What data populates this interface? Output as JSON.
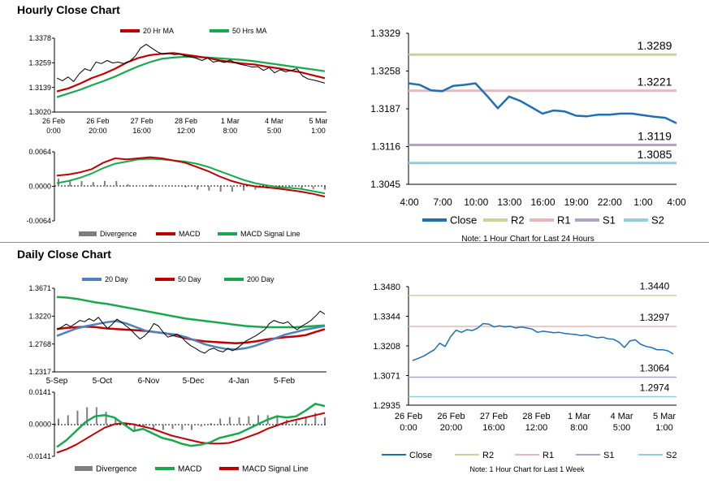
{
  "hourly_section": {
    "title": "Hourly Close Chart"
  },
  "daily_section": {
    "title": "Daily Close Chart"
  },
  "colors": {
    "ma20": "#c00000",
    "ma50": "#1aa84f",
    "price": "#000000",
    "macd": "#c00000",
    "signal": "#1aa84f",
    "divergence": "#7f7f7f",
    "close_blue": "#1f6fb5",
    "r2": "#c3d69b",
    "r1": "#e6b9b8",
    "s1": "#b3a2c7",
    "s2": "#93cddd",
    "sma20_daily": "#4f81bd"
  },
  "chart_data": [
    {
      "id": "hourly_price",
      "type": "line",
      "legend": [
        "20 Hr MA",
        "50 Hrs MA"
      ],
      "y_ticks": [
        "1.3378",
        "1.3259",
        "1.3139",
        "1.3020"
      ],
      "ylim": [
        1.302,
        1.3378
      ],
      "x_ticks": [
        [
          "26 Feb",
          "0:00"
        ],
        [
          "26 Feb",
          "20:00"
        ],
        [
          "27 Feb",
          "16:00"
        ],
        [
          "28 Feb",
          "12:00"
        ],
        [
          "1 Mar",
          "8:00"
        ],
        [
          "4 Mar",
          "5:00"
        ],
        [
          "5 Mar",
          "1:00"
        ]
      ],
      "series": [
        {
          "name": "Close",
          "values": [
            1.3185,
            1.3172,
            1.319,
            1.3168,
            1.3205,
            1.323,
            1.322,
            1.3262,
            1.3255,
            1.327,
            1.3258,
            1.3262,
            1.3255,
            1.3265,
            1.329,
            1.333,
            1.3348,
            1.333,
            1.3312,
            1.33,
            1.3305,
            1.3298,
            1.33,
            1.3292,
            1.3288,
            1.328,
            1.327,
            1.3282,
            1.3262,
            1.3268,
            1.326,
            1.3272,
            1.3258,
            1.325,
            1.3245,
            1.3238,
            1.324,
            1.3222,
            1.3235,
            1.321,
            1.3225,
            1.3215,
            1.3222,
            1.323,
            1.3195,
            1.318,
            1.3175,
            1.3168,
            1.316
          ]
        },
        {
          "name": "20 Hr MA",
          "values": [
            1.312,
            1.3135,
            1.3158,
            1.3185,
            1.3205,
            1.323,
            1.326,
            1.3282,
            1.3296,
            1.3302,
            1.3306,
            1.3298,
            1.329,
            1.3282,
            1.327,
            1.3262,
            1.3255,
            1.325,
            1.324,
            1.3232,
            1.3222,
            1.3212,
            1.3198,
            1.3184
          ]
        },
        {
          "name": "50 Hrs MA",
          "values": [
            1.3092,
            1.311,
            1.3128,
            1.315,
            1.317,
            1.3192,
            1.3218,
            1.3242,
            1.3262,
            1.3278,
            1.3284,
            1.3288,
            1.3286,
            1.3284,
            1.328,
            1.3276,
            1.3272,
            1.3266,
            1.3258,
            1.325,
            1.3242,
            1.3234,
            1.3226,
            1.3218
          ]
        }
      ]
    },
    {
      "id": "hourly_macd",
      "type": "line",
      "legend": [
        "Divergence",
        "MACD",
        "MACD Signal Line"
      ],
      "y_ticks": [
        "0.0064",
        "0.0000",
        "-0.0064"
      ],
      "ylim": [
        -0.0064,
        0.0064
      ],
      "series": [
        {
          "name": "MACD",
          "values": [
            0.002,
            0.0022,
            0.0026,
            0.0032,
            0.0044,
            0.0052,
            0.005,
            0.0052,
            0.0054,
            0.0052,
            0.0048,
            0.0044,
            0.0036,
            0.0028,
            0.0018,
            0.001,
            0.0004,
            0.0,
            -0.0002,
            -0.0004,
            -0.0007,
            -0.001,
            -0.0014,
            -0.0019
          ]
        },
        {
          "name": "MACD Signal Line",
          "values": [
            0.0006,
            0.001,
            0.0016,
            0.0024,
            0.0034,
            0.0042,
            0.0046,
            0.005,
            0.0051,
            0.005,
            0.0048,
            0.0046,
            0.0042,
            0.0036,
            0.0028,
            0.002,
            0.0012,
            0.0006,
            0.0002,
            -0.0001,
            -0.0003,
            -0.0005,
            -0.0009,
            -0.0013
          ]
        },
        {
          "name": "Divergence",
          "values": [
            0.0014,
            0.0012,
            0.001,
            0.0008,
            0.001,
            0.001,
            0.0004,
            0.0002,
            0.0003,
            0.0002,
            0.0,
            -0.0002,
            -0.0006,
            -0.0008,
            -0.001,
            -0.001,
            -0.0008,
            -0.0006,
            -0.0004,
            -0.0003,
            -0.0004,
            -0.0005,
            -0.0005,
            -0.0006
          ]
        }
      ]
    },
    {
      "id": "hourly_levels",
      "type": "line",
      "y_ticks": [
        "1.3329",
        "1.3258",
        "1.3187",
        "1.3116",
        "1.3045"
      ],
      "ylim": [
        1.3045,
        1.3329
      ],
      "x_ticks": [
        "4:00",
        "7:00",
        "10:00",
        "13:00",
        "16:00",
        "19:00",
        "22:00",
        "1:00",
        "4:00"
      ],
      "levels": [
        {
          "name": "R2",
          "value": 1.3289,
          "label": "1.3289"
        },
        {
          "name": "R1",
          "value": 1.3221,
          "label": "1.3221"
        },
        {
          "name": "S1",
          "value": 1.3119,
          "label": "1.3119"
        },
        {
          "name": "S2",
          "value": 1.3085,
          "label": "1.3085"
        }
      ],
      "series": [
        {
          "name": "Close",
          "values": [
            1.3235,
            1.3232,
            1.3222,
            1.322,
            1.323,
            1.3232,
            1.3235,
            1.3212,
            1.3188,
            1.321,
            1.3202,
            1.319,
            1.3178,
            1.3184,
            1.3182,
            1.3174,
            1.3173,
            1.3176,
            1.3176,
            1.3178,
            1.3178,
            1.3175,
            1.3172,
            1.317,
            1.316
          ]
        }
      ],
      "legend": [
        "Close",
        "R2",
        "R1",
        "S1",
        "S2"
      ],
      "note": "Note: 1 Hour Chart for Last 24 Hours"
    },
    {
      "id": "daily_price",
      "type": "line",
      "legend": [
        "20 Day",
        "50 Day",
        "200 Day"
      ],
      "y_ticks": [
        "1.3671",
        "1.3220",
        "1.2768",
        "1.2317"
      ],
      "ylim": [
        1.2317,
        1.3671
      ],
      "x_ticks": [
        "5-Sep",
        "5-Oct",
        "6-Nov",
        "5-Dec",
        "4-Jan",
        "5-Feb"
      ],
      "series": [
        {
          "name": "Close",
          "values": [
            1.3,
            1.304,
            1.309,
            1.305,
            1.31,
            1.315,
            1.313,
            1.318,
            1.314,
            1.32,
            1.31,
            1.302,
            1.309,
            1.317,
            1.312,
            1.306,
            1.3,
            1.292,
            1.285,
            1.29,
            1.298,
            1.31,
            1.306,
            1.296,
            1.288,
            1.29,
            1.293,
            1.288,
            1.28,
            1.274,
            1.27,
            1.265,
            1.262,
            1.268,
            1.27,
            1.266,
            1.264,
            1.27,
            1.266,
            1.27,
            1.276,
            1.282,
            1.286,
            1.29,
            1.295,
            1.3,
            1.31,
            1.315,
            1.312,
            1.31,
            1.313,
            1.305,
            1.3,
            1.306,
            1.31,
            1.315,
            1.322,
            1.33,
            1.325
          ]
        },
        {
          "name": "20 Day",
          "values": [
            1.29,
            1.296,
            1.302,
            1.306,
            1.309,
            1.312,
            1.314,
            1.31,
            1.304,
            1.298,
            1.296,
            1.294,
            1.292,
            1.288,
            1.282,
            1.276,
            1.272,
            1.269,
            1.268,
            1.27,
            1.274,
            1.28,
            1.286,
            1.292,
            1.296,
            1.3,
            1.303,
            1.306
          ]
        },
        {
          "name": "50 Day",
          "values": [
            1.301,
            1.303,
            1.304,
            1.305,
            1.304,
            1.302,
            1.301,
            1.3,
            1.299,
            1.298,
            1.296,
            1.294,
            1.29,
            1.286,
            1.283,
            1.281,
            1.28,
            1.279,
            1.278,
            1.279,
            1.281,
            1.284,
            1.286,
            1.288,
            1.289,
            1.291,
            1.296,
            1.301
          ]
        },
        {
          "name": "200 Day",
          "values": [
            1.353,
            1.352,
            1.35,
            1.347,
            1.344,
            1.342,
            1.339,
            1.336,
            1.333,
            1.33,
            1.327,
            1.324,
            1.321,
            1.318,
            1.316,
            1.314,
            1.312,
            1.31,
            1.308,
            1.306,
            1.305,
            1.304,
            1.304,
            1.304,
            1.304,
            1.305,
            1.306,
            1.307
          ]
        }
      ]
    },
    {
      "id": "daily_macd",
      "type": "line",
      "legend": [
        "Divergence",
        "MACD",
        "MACD Signal Line"
      ],
      "y_ticks": [
        "0.0141",
        "0.0000",
        "-0.0141"
      ],
      "ylim": [
        -0.0141,
        0.0141
      ],
      "series": [
        {
          "name": "MACD",
          "values": [
            -0.01,
            -0.007,
            -0.003,
            0.001,
            0.0035,
            0.004,
            0.003,
            0.0,
            -0.003,
            -0.002,
            -0.004,
            -0.006,
            -0.007,
            -0.0085,
            -0.0095,
            -0.009,
            -0.008,
            -0.006,
            -0.005,
            -0.004,
            -0.002,
            0.0,
            0.002,
            0.0035,
            0.003,
            0.0035,
            0.006,
            0.009,
            0.008
          ]
        },
        {
          "name": "MACD Signal Line",
          "values": [
            -0.0125,
            -0.011,
            -0.009,
            -0.0065,
            -0.004,
            -0.0015,
            0.0,
            0.0005,
            0.0,
            -0.001,
            -0.002,
            -0.0035,
            -0.005,
            -0.006,
            -0.007,
            -0.008,
            -0.0085,
            -0.0085,
            -0.0082,
            -0.007,
            -0.0055,
            -0.004,
            -0.002,
            -0.0005,
            0.001,
            0.002,
            0.003,
            0.004,
            0.005
          ]
        },
        {
          "name": "Divergence",
          "values": [
            0.0025,
            0.004,
            0.006,
            0.0075,
            0.0075,
            0.0055,
            0.003,
            -0.0005,
            -0.003,
            -0.001,
            -0.002,
            -0.0025,
            -0.002,
            -0.0025,
            -0.0025,
            -0.001,
            0.0005,
            0.0025,
            0.0032,
            0.003,
            0.0035,
            0.004,
            0.004,
            0.004,
            0.002,
            0.0015,
            0.003,
            0.005,
            0.003
          ]
        }
      ]
    },
    {
      "id": "daily_levels",
      "type": "line",
      "y_ticks": [
        "1.3480",
        "1.3344",
        "1.3208",
        "1.3071",
        "1.2935"
      ],
      "ylim": [
        1.2935,
        1.348
      ],
      "x_ticks": [
        [
          "26 Feb",
          "0:00"
        ],
        [
          "26 Feb",
          "20:00"
        ],
        [
          "27 Feb",
          "16:00"
        ],
        [
          "28 Feb",
          "12:00"
        ],
        [
          "1 Mar",
          "8:00"
        ],
        [
          "4 Mar",
          "5:00"
        ],
        [
          "5 Mar",
          "1:00"
        ]
      ],
      "levels": [
        {
          "name": "R2",
          "value": 1.344,
          "label": "1.3440"
        },
        {
          "name": "R1",
          "value": 1.3297,
          "label": "1.3297"
        },
        {
          "name": "S1",
          "value": 1.3064,
          "label": "1.3064"
        },
        {
          "name": "S2",
          "value": 1.2974,
          "label": "1.2974"
        }
      ],
      "series": [
        {
          "name": "Close",
          "values": [
            1.314,
            1.315,
            1.316,
            1.3175,
            1.319,
            1.322,
            1.3205,
            1.325,
            1.328,
            1.327,
            1.3282,
            1.3278,
            1.329,
            1.331,
            1.3308,
            1.3295,
            1.33,
            1.3295,
            1.3298,
            1.329,
            1.3295,
            1.329,
            1.3285,
            1.327,
            1.3275,
            1.3272,
            1.3268,
            1.327,
            1.3265,
            1.3262,
            1.326,
            1.3255,
            1.3258,
            1.325,
            1.3245,
            1.3248,
            1.324,
            1.3238,
            1.3225,
            1.32,
            1.323,
            1.3236,
            1.3215,
            1.3205,
            1.32,
            1.319,
            1.319,
            1.3185,
            1.317
          ]
        }
      ],
      "legend": [
        "Close",
        "R2",
        "R1",
        "S1",
        "S2"
      ],
      "note": "Note: 1 Hour Chart for Last 1 Week"
    }
  ]
}
